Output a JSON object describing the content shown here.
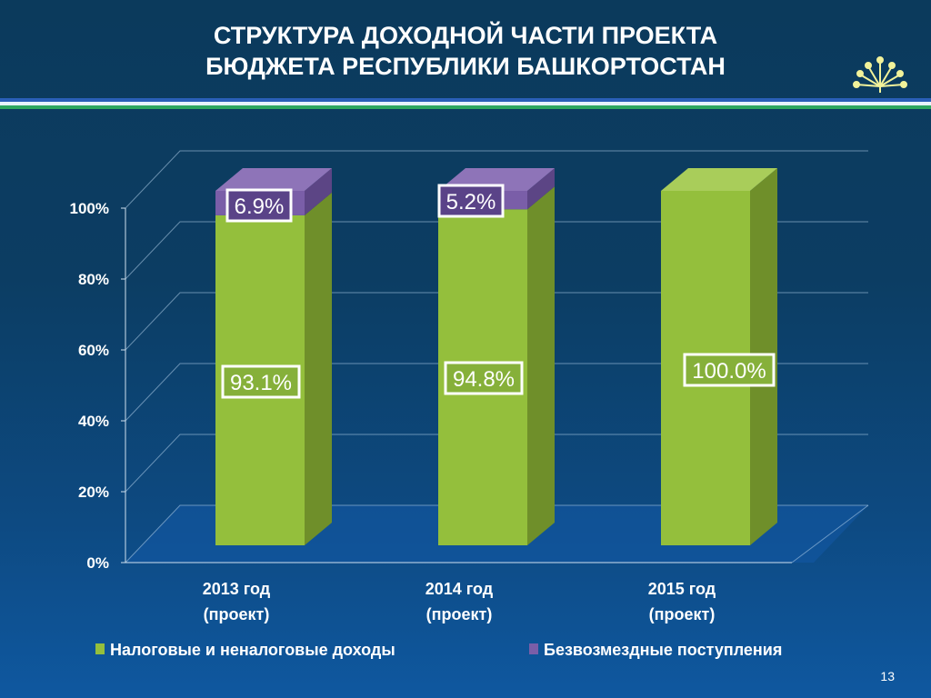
{
  "header": {
    "title_line1": "СТРУКТУРА ДОХОДНОЙ ЧАСТИ ПРОЕКТА",
    "title_line2": "БЮДЖЕТА РЕСПУБЛИКИ БАШКОРТОСТАН",
    "logo_icon": "kurai-flower-icon"
  },
  "page_number": "13",
  "colors": {
    "green": "#94bf3c",
    "purple": "#7a5ea8"
  },
  "chart_data": {
    "type": "bar",
    "stacked": true,
    "categories": [
      "2013 год\n(проект)",
      "2014 год\n(проект)",
      "2015 год\n(проект)"
    ],
    "category_lines": [
      [
        "2013 год",
        "(проект)"
      ],
      [
        "2014 год",
        "(проект)"
      ],
      [
        "2015 год",
        "(проект)"
      ]
    ],
    "series": [
      {
        "name": "Налоговые и неналоговые доходы",
        "values": [
          93.1,
          94.8,
          100.0
        ],
        "labels": [
          "93.1%",
          "94.8%",
          "100.0%"
        ],
        "color": "#94bf3c"
      },
      {
        "name": "Безвозмездные поступления",
        "values": [
          6.9,
          5.2,
          0
        ],
        "labels": [
          "6.9%",
          "5.2%",
          ""
        ],
        "color": "#7a5ea8"
      }
    ],
    "yticks": [
      "0%",
      "20%",
      "40%",
      "60%",
      "80%",
      "100%"
    ],
    "ylim": [
      0,
      100
    ],
    "grid": true,
    "legend": "bottom"
  }
}
